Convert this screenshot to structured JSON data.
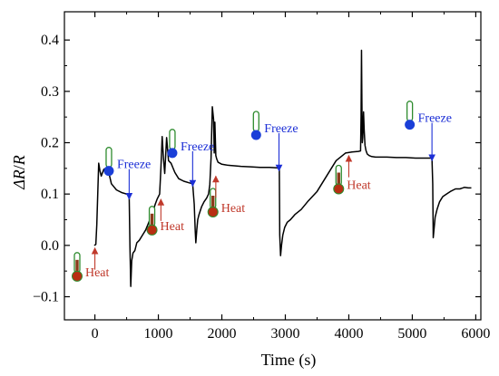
{
  "chart_data": {
    "type": "line",
    "xlabel": "Time (s)",
    "ylabel_main": "ΔR",
    "ylabel_sep": "/",
    "ylabel_den": "R",
    "xlim": [
      -480,
      6080
    ],
    "ylim": [
      -0.145,
      0.455
    ],
    "x_ticks": [
      0,
      1000,
      2000,
      3000,
      4000,
      5000,
      6000
    ],
    "x_tick_labels": [
      "0",
      "1000",
      "2000",
      "3000",
      "4000",
      "5000",
      "6000"
    ],
    "y_ticks": [
      -0.1,
      0.0,
      0.1,
      0.2,
      0.3,
      0.4
    ],
    "y_tick_labels": [
      "−0.1",
      "0.0",
      "0.1",
      "0.2",
      "0.3",
      "0.4"
    ],
    "grid": false,
    "legend": "none",
    "line_color": "#000000",
    "series": [
      {
        "x": [
          -10,
          15,
          30,
          45,
          60,
          80,
          100,
          140,
          200,
          260,
          340,
          420,
          500,
          540,
          552,
          565,
          580,
          600,
          630,
          660,
          700,
          750,
          800,
          850,
          900,
          950,
          980,
          1000,
          1020,
          1040,
          1060,
          1080,
          1100,
          1130,
          1160,
          1200,
          1260,
          1320,
          1400,
          1480,
          1540,
          1565,
          1580,
          1590,
          1605,
          1620,
          1640,
          1680,
          1720,
          1760,
          1790,
          1810,
          1830,
          1850,
          1870,
          1880,
          1890,
          1905,
          1920,
          1940,
          1970,
          2000,
          2050,
          2100,
          2200,
          2300,
          2450,
          2600,
          2750,
          2870,
          2905,
          2912,
          2925,
          2940,
          2960,
          2990,
          3030,
          3080,
          3150,
          3250,
          3350,
          3500,
          3650,
          3800,
          3950,
          4050,
          4150,
          4185,
          4193,
          4200,
          4206,
          4212,
          4220,
          4232,
          4242,
          4255,
          4270,
          4290,
          4320,
          4360,
          4420,
          4500,
          4600,
          4750,
          4900,
          5050,
          5150,
          5250,
          5310,
          5322,
          5330,
          5345,
          5360,
          5390,
          5430,
          5480,
          5540,
          5600,
          5680,
          5750,
          5820,
          5880,
          5930
        ],
        "y": [
          0.0,
          0.002,
          0.04,
          0.1,
          0.16,
          0.145,
          0.135,
          0.148,
          0.152,
          0.12,
          0.108,
          0.103,
          0.1,
          0.097,
          0.0,
          -0.08,
          -0.03,
          -0.015,
          -0.01,
          0.005,
          0.01,
          0.02,
          0.03,
          0.045,
          0.06,
          0.08,
          0.09,
          0.095,
          0.1,
          0.15,
          0.212,
          0.17,
          0.14,
          0.21,
          0.165,
          0.16,
          0.142,
          0.13,
          0.125,
          0.122,
          0.12,
          0.08,
          0.03,
          0.005,
          0.03,
          0.05,
          0.06,
          0.075,
          0.085,
          0.092,
          0.1,
          0.118,
          0.17,
          0.27,
          0.245,
          0.18,
          0.24,
          0.175,
          0.168,
          0.162,
          0.16,
          0.158,
          0.157,
          0.156,
          0.155,
          0.154,
          0.153,
          0.152,
          0.152,
          0.151,
          0.15,
          0.02,
          -0.02,
          0.0,
          0.02,
          0.035,
          0.045,
          0.05,
          0.06,
          0.07,
          0.085,
          0.105,
          0.135,
          0.165,
          0.18,
          0.182,
          0.183,
          0.184,
          0.25,
          0.38,
          0.28,
          0.2,
          0.21,
          0.26,
          0.225,
          0.195,
          0.185,
          0.178,
          0.175,
          0.173,
          0.172,
          0.172,
          0.172,
          0.171,
          0.171,
          0.17,
          0.17,
          0.17,
          0.17,
          0.12,
          0.015,
          0.035,
          0.055,
          0.07,
          0.085,
          0.095,
          0.1,
          0.105,
          0.11,
          0.11,
          0.113,
          0.112,
          0.112
        ]
      }
    ],
    "annotations": [
      {
        "kind": "heat",
        "text": "Heat",
        "x": -280,
        "y": -0.06,
        "arrow_x": 0,
        "arrow_y": -0.005
      },
      {
        "kind": "freeze",
        "text": "Freeze",
        "x": 220,
        "y": 0.145,
        "arrow_x": 540,
        "arrow_y": 0.09
      },
      {
        "kind": "heat",
        "text": "Heat",
        "x": 900,
        "y": 0.03,
        "arrow_x": 1040,
        "arrow_y": 0.09
      },
      {
        "kind": "freeze",
        "text": "Freeze",
        "x": 1220,
        "y": 0.18,
        "arrow_x": 1540,
        "arrow_y": 0.115
      },
      {
        "kind": "heat",
        "text": "Heat",
        "x": 1860,
        "y": 0.065,
        "arrow_x": 1905,
        "arrow_y": 0.135
      },
      {
        "kind": "freeze",
        "text": "Freeze",
        "x": 2540,
        "y": 0.215,
        "arrow_x": 2900,
        "arrow_y": 0.145
      },
      {
        "kind": "heat",
        "text": "Heat",
        "x": 3840,
        "y": 0.11,
        "arrow_x": 4000,
        "arrow_y": 0.175
      },
      {
        "kind": "freeze",
        "text": "Freeze",
        "x": 4960,
        "y": 0.235,
        "arrow_x": 5310,
        "arrow_y": 0.165
      }
    ],
    "colors": {
      "heat": "#c0392b",
      "freeze": "#1c2fd6",
      "thermo_bulb_heat": "#b82e12",
      "thermo_bulb_freeze": "#1a3fd8",
      "thermo_outline": "#2e8b2e",
      "thermo_fill_heat": "#8b3a1a"
    }
  }
}
